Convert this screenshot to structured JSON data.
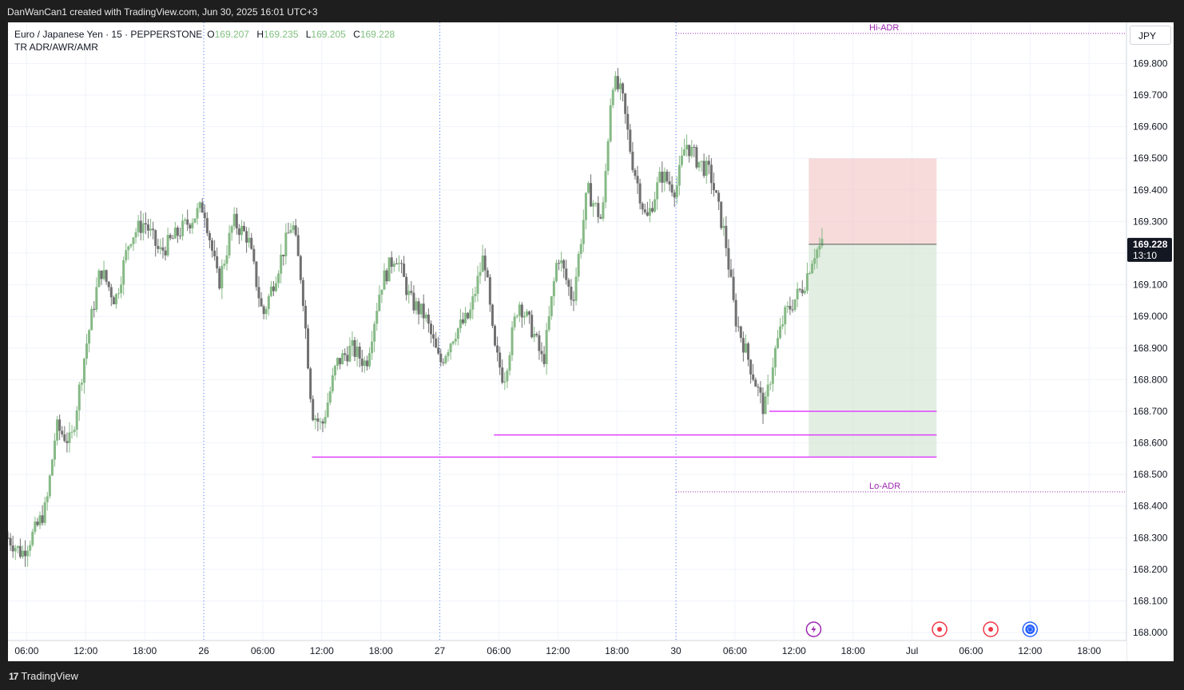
{
  "header": {
    "credit": "DanWanCan1 created with TradingView.com, Jun 30, 2025 16:01 UTC+3"
  },
  "legend": {
    "symbol": "Euro / Japanese Yen · 15 · PEPPERSTONE",
    "open_label": "O",
    "open": "169.207",
    "high_label": "H",
    "high": "169.235",
    "low_label": "L",
    "low": "169.205",
    "close_label": "C",
    "close": "169.228",
    "indicator": "TR ADR/AWR/AMR"
  },
  "currency_button": "JPY",
  "footer": {
    "brand": "TradingView",
    "logo_glyph": "17"
  },
  "colors": {
    "up": "#86b986",
    "down": "#707070",
    "magenta": "#e040fb",
    "adr": "#9c27b0",
    "stop_zone": "#f2c7c7",
    "target_zone": "#cfe3cf",
    "session": "#2962ff"
  },
  "chart_data": {
    "type": "candlestick",
    "symbol": "EURJPY",
    "timeframe": "15",
    "y_ticks": [
      168.0,
      168.1,
      168.2,
      168.3,
      168.4,
      168.5,
      168.6,
      168.7,
      168.8,
      168.9,
      169.0,
      169.1,
      169.2,
      169.3,
      169.4,
      169.5,
      169.6,
      169.7,
      169.8
    ],
    "y_tick_labels": [
      "168.000",
      "168.100",
      "168.200",
      "168.300",
      "168.400",
      "168.500",
      "168.600",
      "168.700",
      "168.800",
      "168.900",
      "169.000",
      "169.100",
      "169.200",
      "169.300",
      "169.400",
      "169.500",
      "169.600",
      "169.700",
      "169.800"
    ],
    "ylim": [
      167.975,
      169.93
    ],
    "x_tick_labels": [
      "06:00",
      "12:00",
      "18:00",
      "26",
      "06:00",
      "12:00",
      "18:00",
      "27",
      "06:00",
      "12:00",
      "18:00",
      "30",
      "06:00",
      "12:00",
      "18:00",
      "Jul",
      "06:00",
      "12:00",
      "18:00"
    ],
    "x_tick_hours": [
      6,
      12,
      18,
      24,
      30,
      36,
      42,
      48,
      54,
      60,
      66,
      72,
      78,
      84,
      90,
      96,
      102,
      108,
      114
    ],
    "x_range_hours": [
      4.1,
      117.8
    ],
    "session_breaks_hours": [
      24,
      48,
      72
    ],
    "last_price": {
      "value": 169.228,
      "label": "169.228",
      "countdown": "13:10"
    },
    "price_path_hours": [
      4.1,
      5.5,
      7.0,
      8.0,
      9.0,
      10.5,
      12.0,
      13.5,
      15.0,
      16.5,
      18.0,
      19.5,
      21.0,
      22.5,
      24.0,
      25.5,
      27.0,
      28.5,
      30.0,
      31.5,
      33.0,
      34.0,
      35.0,
      36.0,
      37.5,
      39.0,
      40.5,
      42.0,
      43.5,
      45.0,
      46.5,
      48.0,
      49.5,
      51.0,
      52.5,
      53.5,
      54.5,
      56.0,
      57.5,
      58.5,
      60.0,
      61.5,
      63.0,
      64.5,
      65.5,
      66.5,
      67.5,
      69.0,
      70.5,
      72.0,
      73.0,
      74.0,
      75.5,
      77.0,
      78.0,
      79.5,
      81.0,
      82.0,
      83.0,
      84.0,
      85.0,
      86.0,
      87.0
    ],
    "price_path_values": [
      168.3,
      168.25,
      168.33,
      168.4,
      168.65,
      168.6,
      168.9,
      169.15,
      169.05,
      169.25,
      169.3,
      169.2,
      169.25,
      169.3,
      169.35,
      169.1,
      169.3,
      169.25,
      169.0,
      169.15,
      169.3,
      169.1,
      168.7,
      168.65,
      168.85,
      168.9,
      168.85,
      169.1,
      169.2,
      169.05,
      169.0,
      168.85,
      168.95,
      169.0,
      169.2,
      168.9,
      168.8,
      169.05,
      168.95,
      168.85,
      169.2,
      169.05,
      169.4,
      169.3,
      169.75,
      169.7,
      169.5,
      169.3,
      169.45,
      169.4,
      169.55,
      169.5,
      169.45,
      169.25,
      169.0,
      168.85,
      168.7,
      168.88,
      169.0,
      169.05,
      169.1,
      169.2,
      169.23
    ],
    "horizontal_lines": [
      {
        "name": "Hi-ADR",
        "value": 169.895,
        "from_hour": 72.0,
        "to_hour": 117.8,
        "style": "dotted"
      },
      {
        "name": "Lo-ADR",
        "value": 168.445,
        "from_hour": 72.0,
        "to_hour": 117.8,
        "style": "dotted"
      },
      {
        "name": "",
        "value": 168.7,
        "from_hour": 81.5,
        "to_hour": 98.5,
        "style": "solid"
      },
      {
        "name": "",
        "value": 168.625,
        "from_hour": 53.5,
        "to_hour": 98.5,
        "style": "solid"
      },
      {
        "name": "",
        "value": 168.555,
        "from_hour": 35.0,
        "to_hour": 98.5,
        "style": "solid"
      }
    ],
    "position": {
      "type": "long",
      "entry": 169.228,
      "stop": 169.5,
      "target": 168.555,
      "from_hour": 85.5,
      "to_hour": 98.5
    },
    "event_markers": [
      {
        "hour": 86.0,
        "icon": "lightning-icon",
        "color": "#9c27b0"
      },
      {
        "hour": 98.8,
        "icon": "event-dot-icon",
        "color": "#f23645"
      },
      {
        "hour": 104.0,
        "icon": "event-dot-icon",
        "color": "#f23645"
      },
      {
        "hour": 108.0,
        "icon": "globe-icon",
        "color": "#2962ff"
      }
    ]
  }
}
